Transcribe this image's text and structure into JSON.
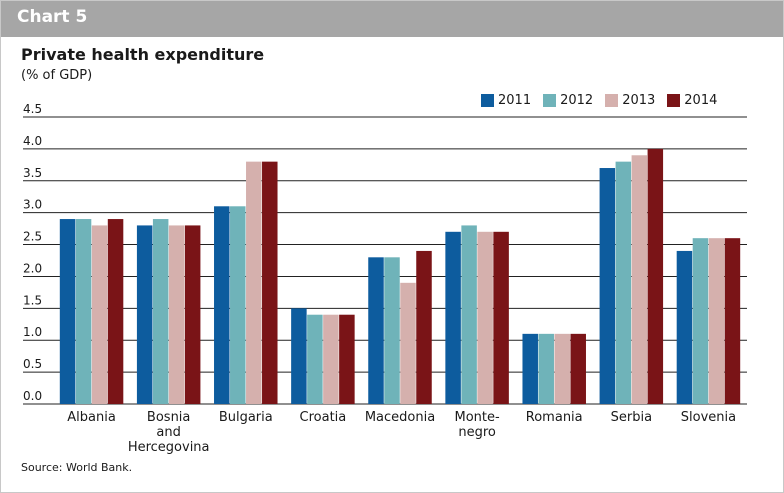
{
  "header": {
    "chart_label": "Chart 5"
  },
  "title": "Private health expenditure",
  "unit": "(% of GDP)",
  "source": "Source: World Bank.",
  "colors": {
    "2011": "#0d5c9e",
    "2012": "#6fb3b9",
    "2013": "#d5b0ad",
    "2014": "#7a1417"
  },
  "chart_data": {
    "type": "bar",
    "categories": [
      [
        "Albania"
      ],
      [
        "Bosnia",
        "and",
        "Hercegovina"
      ],
      [
        "Bulgaria"
      ],
      [
        "Croatia"
      ],
      [
        "Macedonia"
      ],
      [
        "Monte-",
        "negro"
      ],
      [
        "Romania"
      ],
      [
        "Serbia"
      ],
      [
        "Slovenia"
      ]
    ],
    "series": [
      {
        "name": "2011",
        "values": [
          2.9,
          2.8,
          3.1,
          1.5,
          2.3,
          2.7,
          1.1,
          3.7,
          2.4
        ]
      },
      {
        "name": "2012",
        "values": [
          2.9,
          2.9,
          3.1,
          1.4,
          2.3,
          2.8,
          1.1,
          3.8,
          2.6
        ]
      },
      {
        "name": "2013",
        "values": [
          2.8,
          2.8,
          3.8,
          1.4,
          1.9,
          2.7,
          1.1,
          3.9,
          2.6
        ]
      },
      {
        "name": "2014",
        "values": [
          2.9,
          2.8,
          3.8,
          1.4,
          2.4,
          2.7,
          1.1,
          4.0,
          2.6
        ]
      }
    ],
    "yticks": [
      "0.0",
      "0.5",
      "1.0",
      "1.5",
      "2.0",
      "2.5",
      "3.0",
      "3.5",
      "4.0",
      "4.5"
    ],
    "ylim": [
      0,
      4.5
    ],
    "grid": true,
    "legend": "top-right"
  }
}
